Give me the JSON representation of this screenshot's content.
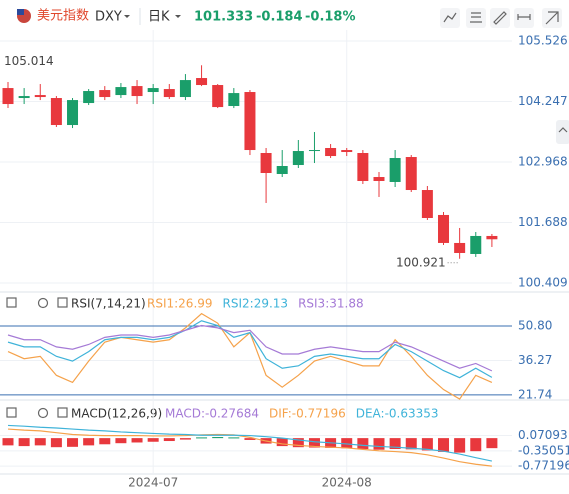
{
  "header": {
    "name": "美元指数",
    "code": "DXY",
    "period": "日K",
    "price": "101.333",
    "change": "-0.184",
    "change_pct": "-0.18%"
  },
  "chart_data": [
    {
      "type": "candlestick",
      "categories": [
        null,
        null,
        null,
        null,
        null,
        null,
        null,
        null,
        null,
        "2024-07",
        null,
        null,
        null,
        null,
        null,
        null,
        null,
        null,
        null,
        null,
        null,
        "2024-08",
        null,
        null,
        null,
        null,
        null,
        null,
        null,
        null,
        null
      ],
      "open": [
        104.532,
        104.321,
        104.384,
        104.321,
        103.75,
        104.215,
        104.49,
        104.384,
        104.574,
        104.448,
        104.511,
        104.342,
        104.744,
        104.596,
        104.152,
        104.448,
        103.158,
        102.714,
        102.904,
        103.2,
        103.264,
        103.221,
        103.158,
        102.65,
        102.545,
        103.073,
        102.375,
        101.847,
        101.255,
        101.022,
        101.403
      ],
      "high": [
        104.659,
        104.532,
        104.617,
        104.363,
        104.321,
        104.511,
        104.574,
        104.638,
        104.701,
        104.617,
        104.617,
        104.828,
        105.014,
        104.617,
        104.532,
        104.49,
        103.264,
        103.221,
        103.433,
        103.602,
        103.348,
        103.264,
        103.221,
        102.756,
        103.221,
        103.115,
        102.46,
        101.91,
        101.572,
        101.487,
        101.445
      ],
      "low": [
        104.109,
        104.194,
        104.278,
        103.708,
        103.686,
        104.173,
        104.278,
        104.321,
        104.194,
        104.194,
        104.3,
        104.278,
        104.574,
        104.109,
        104.109,
        103.115,
        102.101,
        102.65,
        102.841,
        102.946,
        103.052,
        103.094,
        102.502,
        102.228,
        102.439,
        102.333,
        101.741,
        101.212,
        100.921,
        100.959,
        101.17
      ],
      "close": [
        104.194,
        104.363,
        104.342,
        103.75,
        104.278,
        104.469,
        104.342,
        104.553,
        104.363,
        104.532,
        104.342,
        104.701,
        104.596,
        104.13,
        104.426,
        103.221,
        102.735,
        102.883,
        103.2,
        103.221,
        103.094,
        103.179,
        102.566,
        102.566,
        103.052,
        102.375,
        101.783,
        101.255,
        101.043,
        101.403,
        101.333
      ],
      "up_color": "#1a9e6a",
      "down_color": "#e8383d",
      "ylim": [
        100.26,
        105.76
      ],
      "yticks": [
        105.526,
        104.247,
        102.968,
        101.688,
        100.409
      ],
      "grid": true
    },
    {
      "type": "line",
      "title": "RSI(7,14,21)",
      "series": [
        {
          "name": "RSI1",
          "label": "RSI1:26.99",
          "color": "#f5a24b",
          "values": [
            40,
            37,
            38,
            30,
            27,
            36,
            44,
            46,
            45,
            44,
            45,
            50,
            56,
            52,
            42,
            48,
            30,
            25,
            30,
            36,
            38,
            36,
            34,
            34,
            45,
            38,
            30,
            24,
            20,
            30,
            26.99
          ]
        },
        {
          "name": "RSI2",
          "label": "RSI2:29.13",
          "color": "#3fb3d9",
          "values": [
            44,
            42,
            42,
            38,
            36,
            40,
            45,
            46,
            46,
            45,
            46,
            49,
            53,
            51,
            46,
            48,
            37,
            33,
            34,
            38,
            39,
            38,
            37,
            37,
            43,
            40,
            36,
            32,
            29,
            33,
            29.13
          ]
        },
        {
          "name": "RSI3",
          "label": "RSI3:31.88",
          "color": "#a57ad6",
          "values": [
            47,
            45,
            45,
            42,
            41,
            43,
            46,
            47,
            47,
            46,
            47,
            49,
            51,
            50,
            48,
            49,
            42,
            39,
            39,
            41,
            42,
            41,
            40,
            40,
            44,
            42,
            39,
            36,
            33,
            35,
            31.88
          ]
        }
      ],
      "ylim": [
        19.6,
        62.6
      ],
      "yticks": [
        {
          "value": 50.8,
          "label": "50.80"
        },
        36.27,
        21.74
      ]
    },
    {
      "type": "macd",
      "title": "MACD(12,26,9)",
      "histogram": {
        "label": "MACD:-0.27684",
        "color": "#a57ad6",
        "up_color": "#1a9e6a",
        "down_color": "#e8383d",
        "values": [
          -0.2,
          -0.22,
          -0.2,
          -0.25,
          -0.24,
          -0.2,
          -0.17,
          -0.14,
          -0.12,
          -0.1,
          -0.08,
          -0.04,
          0.02,
          0.03,
          0.02,
          -0.05,
          -0.15,
          -0.22,
          -0.25,
          -0.26,
          -0.27,
          -0.28,
          -0.3,
          -0.32,
          -0.3,
          -0.31,
          -0.34,
          -0.38,
          -0.4,
          -0.36,
          -0.27684
        ]
      },
      "series": [
        {
          "name": "DIF",
          "label": "DIF:-0.77196",
          "color": "#f5a24b",
          "values": [
            0.25,
            0.22,
            0.2,
            0.15,
            0.1,
            0.08,
            0.07,
            0.07,
            0.07,
            0.06,
            0.06,
            0.07,
            0.09,
            0.1,
            0.09,
            0.02,
            -0.08,
            -0.16,
            -0.2,
            -0.23,
            -0.25,
            -0.27,
            -0.31,
            -0.35,
            -0.37,
            -0.4,
            -0.46,
            -0.55,
            -0.65,
            -0.72,
            -0.77196
          ]
        },
        {
          "name": "DEA",
          "label": "DEA:-0.63353",
          "color": "#3fb3d9",
          "values": [
            0.35,
            0.33,
            0.3,
            0.28,
            0.25,
            0.22,
            0.2,
            0.17,
            0.15,
            0.13,
            0.11,
            0.1,
            0.08,
            0.08,
            0.08,
            0.07,
            0.04,
            0.0,
            -0.05,
            -0.1,
            -0.13,
            -0.16,
            -0.2,
            -0.23,
            -0.25,
            -0.28,
            -0.31,
            -0.36,
            -0.44,
            -0.54,
            -0.63353
          ]
        }
      ],
      "ylim": [
        -1.1,
        0.5
      ],
      "yticks": [
        0.07093,
        -0.35051,
        -0.77196
      ]
    }
  ]
}
